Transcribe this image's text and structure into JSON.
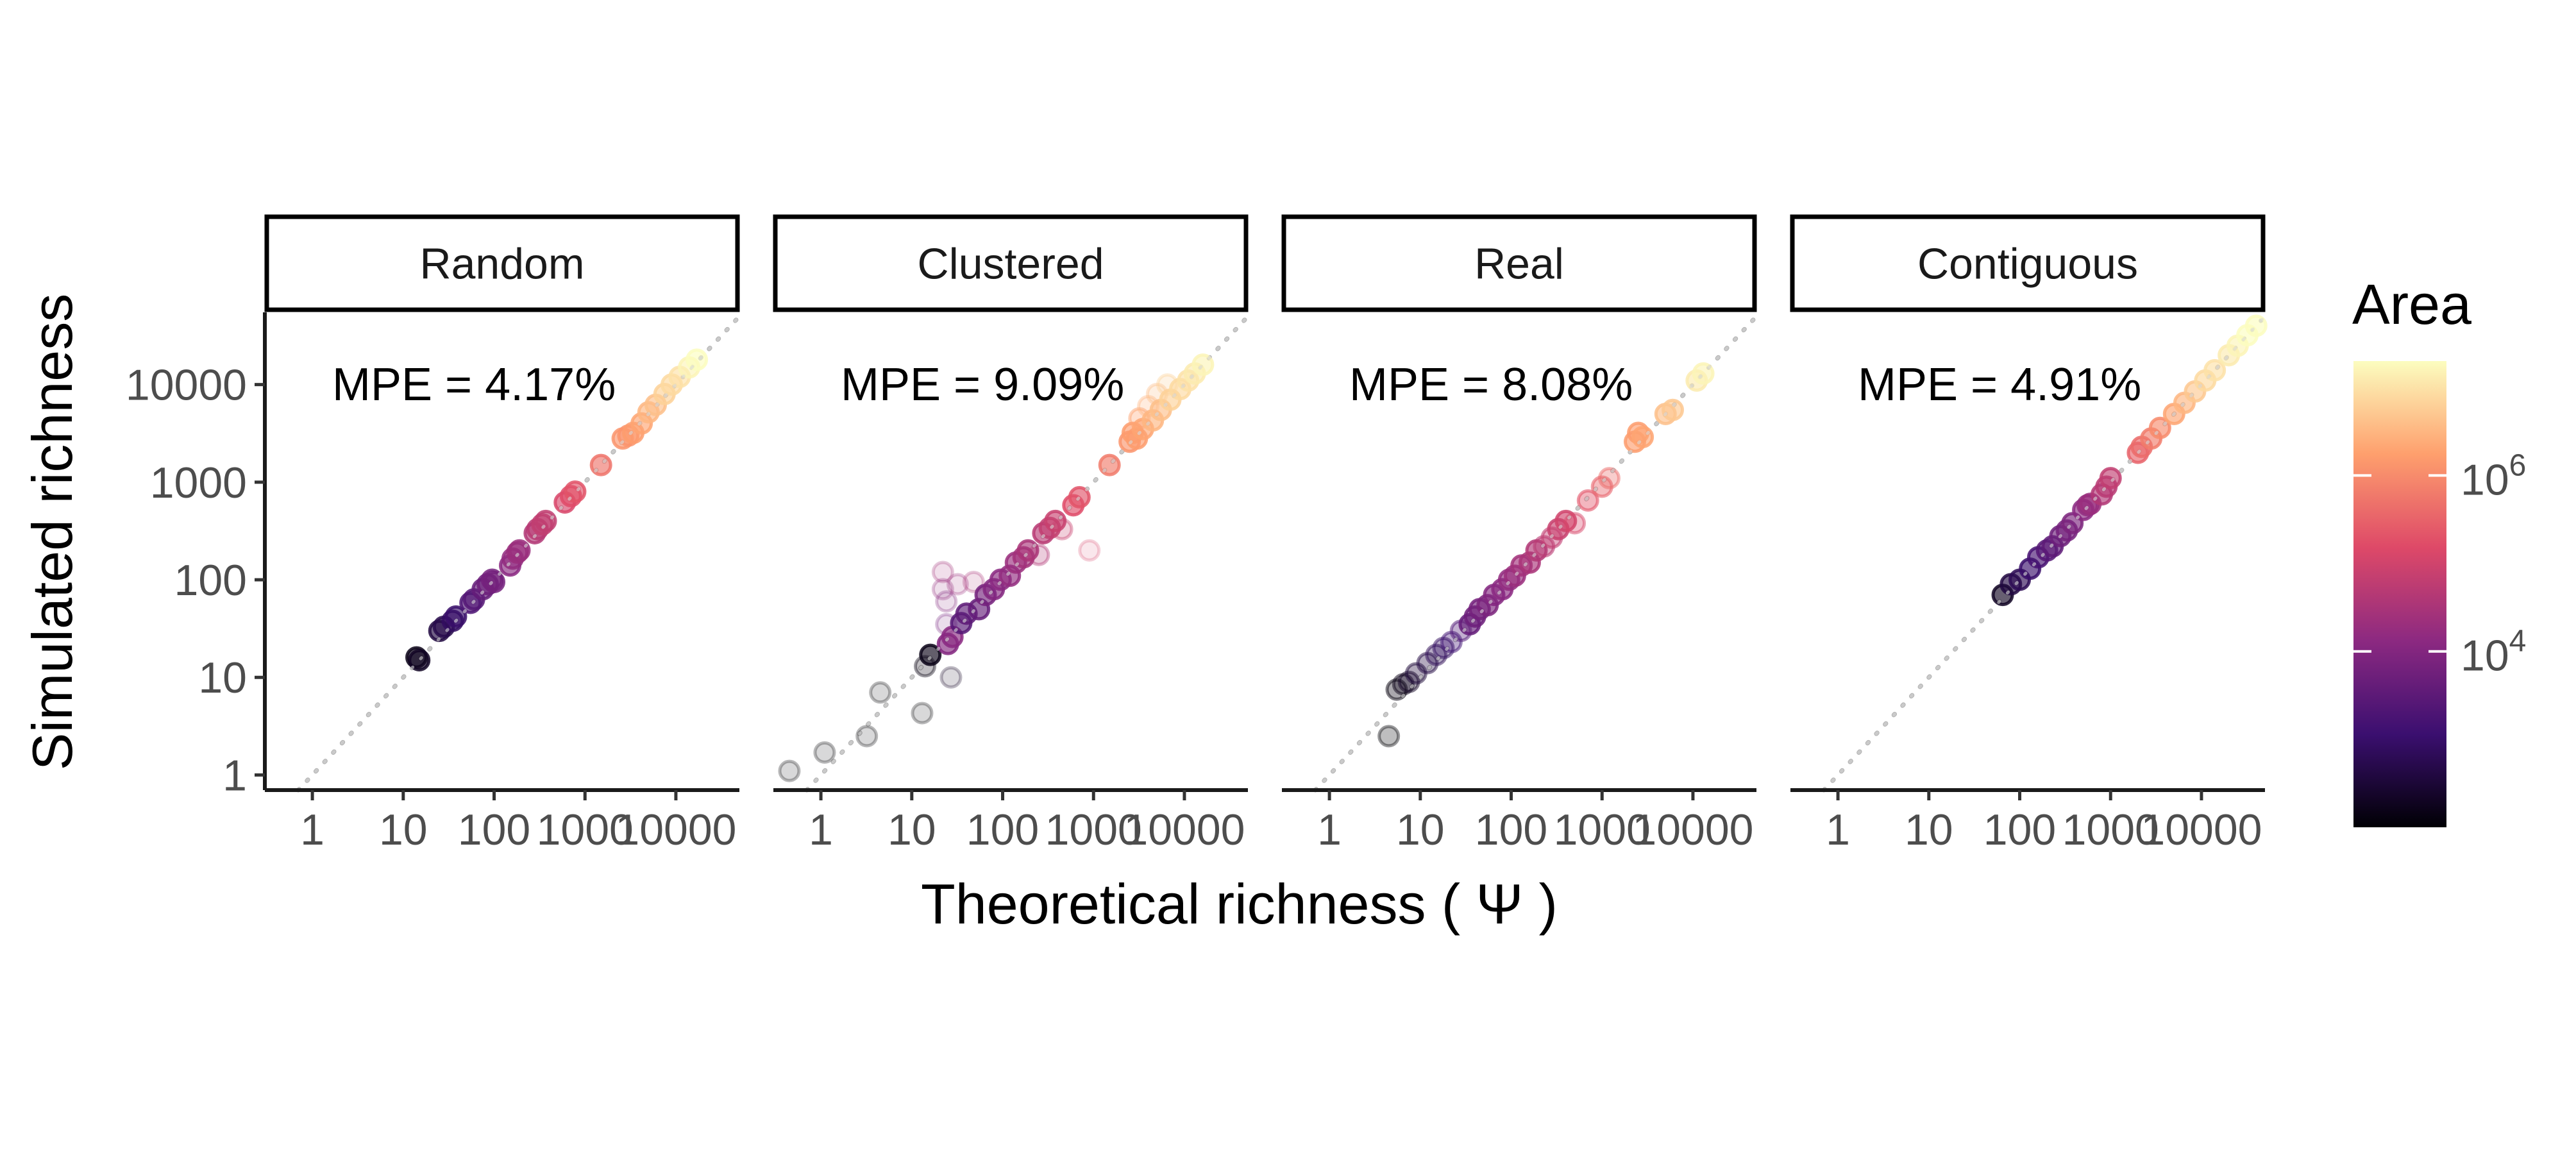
{
  "chart_data": {
    "type": "scatter",
    "xlabel": "Theoretical richness ( Ψ )",
    "ylabel": "Simulated richness",
    "x_scale": "log10",
    "y_scale": "log10",
    "x_ticks": [
      "1",
      "10",
      "100",
      "1000",
      "10000"
    ],
    "y_ticks": [
      "1",
      "10",
      "100",
      "1000",
      "10000"
    ],
    "xlim": [
      0.3,
      50000
    ],
    "ylim": [
      0.7,
      55000
    ],
    "reference_line": "y = x (dotted grey)",
    "grid": false,
    "legend": {
      "title": "Area",
      "type": "continuous color scale",
      "scale": "log10",
      "range": [
        100,
        20000000
      ],
      "ticks": [
        {
          "value": 1000000,
          "base": "10",
          "exp": "6"
        },
        {
          "value": 10000,
          "base": "10",
          "exp": "4"
        }
      ],
      "colormap": [
        "#000004",
        "#3b0f70",
        "#8c2981",
        "#de4968",
        "#fe9f6d",
        "#fcfdbf"
      ],
      "position": "right"
    },
    "panels": [
      {
        "label": "Random",
        "annotation": "MPE = 4.17%",
        "points": [
          {
            "x": 14,
            "y": 16,
            "a": 2.2,
            "o": 0.75
          },
          {
            "x": 15,
            "y": 15,
            "a": 2.3,
            "o": 0.75
          },
          {
            "x": 25,
            "y": 30,
            "a": 2.6,
            "o": 0.75
          },
          {
            "x": 28,
            "y": 33,
            "a": 2.7,
            "o": 0.75
          },
          {
            "x": 35,
            "y": 38,
            "a": 2.9,
            "o": 0.75
          },
          {
            "x": 38,
            "y": 42,
            "a": 3.0,
            "o": 0.75
          },
          {
            "x": 55,
            "y": 58,
            "a": 3.3,
            "o": 0.75
          },
          {
            "x": 60,
            "y": 63,
            "a": 3.4,
            "o": 0.75
          },
          {
            "x": 75,
            "y": 80,
            "a": 3.6,
            "o": 0.75
          },
          {
            "x": 85,
            "y": 90,
            "a": 3.7,
            "o": 0.75
          },
          {
            "x": 95,
            "y": 100,
            "a": 3.8,
            "o": 0.75
          },
          {
            "x": 100,
            "y": 95,
            "a": 3.8,
            "o": 0.75
          },
          {
            "x": 150,
            "y": 140,
            "a": 4.1,
            "o": 0.75
          },
          {
            "x": 160,
            "y": 165,
            "a": 4.2,
            "o": 0.75
          },
          {
            "x": 180,
            "y": 190,
            "a": 4.3,
            "o": 0.75
          },
          {
            "x": 190,
            "y": 200,
            "a": 4.3,
            "o": 0.75
          },
          {
            "x": 280,
            "y": 300,
            "a": 4.6,
            "o": 0.75
          },
          {
            "x": 300,
            "y": 330,
            "a": 4.7,
            "o": 0.75
          },
          {
            "x": 340,
            "y": 370,
            "a": 4.8,
            "o": 0.75
          },
          {
            "x": 370,
            "y": 400,
            "a": 4.8,
            "o": 0.75
          },
          {
            "x": 600,
            "y": 620,
            "a": 5.1,
            "o": 0.75
          },
          {
            "x": 700,
            "y": 720,
            "a": 5.2,
            "o": 0.75
          },
          {
            "x": 780,
            "y": 800,
            "a": 5.3,
            "o": 0.75
          },
          {
            "x": 1500,
            "y": 1500,
            "a": 5.7,
            "o": 0.75
          },
          {
            "x": 2600,
            "y": 2800,
            "a": 6.1,
            "o": 0.75
          },
          {
            "x": 3000,
            "y": 3000,
            "a": 6.1,
            "o": 0.75
          },
          {
            "x": 3400,
            "y": 3200,
            "a": 6.2,
            "o": 0.75
          },
          {
            "x": 4200,
            "y": 4000,
            "a": 6.3,
            "o": 0.75
          },
          {
            "x": 5000,
            "y": 5200,
            "a": 6.5,
            "o": 0.75
          },
          {
            "x": 6000,
            "y": 6200,
            "a": 6.6,
            "o": 0.75
          },
          {
            "x": 7500,
            "y": 8000,
            "a": 6.8,
            "o": 0.75
          },
          {
            "x": 9000,
            "y": 10000,
            "a": 6.9,
            "o": 0.75
          },
          {
            "x": 11000,
            "y": 12000,
            "a": 7.0,
            "o": 0.75
          },
          {
            "x": 14000,
            "y": 15000,
            "a": 7.2,
            "o": 0.75
          },
          {
            "x": 17000,
            "y": 18000,
            "a": 7.3,
            "o": 0.75
          }
        ]
      },
      {
        "label": "Clustered",
        "annotation": "MPE = 9.09%",
        "points": [
          {
            "x": 0.45,
            "y": 1.1,
            "a": 2.0,
            "o": 0.18
          },
          {
            "x": 1.1,
            "y": 1.7,
            "a": 2.0,
            "o": 0.18
          },
          {
            "x": 3.2,
            "y": 2.5,
            "a": 2.0,
            "o": 0.18
          },
          {
            "x": 4.5,
            "y": 7.0,
            "a": 2.0,
            "o": 0.18
          },
          {
            "x": 13,
            "y": 4.3,
            "a": 2.0,
            "o": 0.18
          },
          {
            "x": 14,
            "y": 13,
            "a": 2.1,
            "o": 0.3
          },
          {
            "x": 16,
            "y": 17,
            "a": 2.2,
            "o": 0.75
          },
          {
            "x": 27,
            "y": 10,
            "a": 2.3,
            "o": 0.18
          },
          {
            "x": 22,
            "y": 120,
            "a": 4.4,
            "o": 0.18
          },
          {
            "x": 22,
            "y": 80,
            "a": 4.2,
            "o": 0.18
          },
          {
            "x": 24,
            "y": 60,
            "a": 4.0,
            "o": 0.18
          },
          {
            "x": 24,
            "y": 35,
            "a": 3.8,
            "o": 0.18
          },
          {
            "x": 25,
            "y": 22,
            "a": 4.0,
            "o": 0.75
          },
          {
            "x": 28,
            "y": 26,
            "a": 4.1,
            "o": 0.75
          },
          {
            "x": 32,
            "y": 90,
            "a": 4.3,
            "o": 0.18
          },
          {
            "x": 35,
            "y": 36,
            "a": 3.4,
            "o": 0.75
          },
          {
            "x": 40,
            "y": 45,
            "a": 3.5,
            "o": 0.75
          },
          {
            "x": 48,
            "y": 95,
            "a": 4.5,
            "o": 0.18
          },
          {
            "x": 55,
            "y": 50,
            "a": 3.6,
            "o": 0.75
          },
          {
            "x": 65,
            "y": 70,
            "a": 3.8,
            "o": 0.75
          },
          {
            "x": 80,
            "y": 80,
            "a": 4.0,
            "o": 0.75
          },
          {
            "x": 95,
            "y": 100,
            "a": 4.1,
            "o": 0.75
          },
          {
            "x": 120,
            "y": 110,
            "a": 4.2,
            "o": 0.75
          },
          {
            "x": 140,
            "y": 150,
            "a": 4.3,
            "o": 0.75
          },
          {
            "x": 170,
            "y": 170,
            "a": 4.4,
            "o": 0.75
          },
          {
            "x": 190,
            "y": 200,
            "a": 4.5,
            "o": 0.75
          },
          {
            "x": 250,
            "y": 180,
            "a": 4.6,
            "o": 0.3
          },
          {
            "x": 280,
            "y": 300,
            "a": 4.7,
            "o": 0.75
          },
          {
            "x": 330,
            "y": 340,
            "a": 4.8,
            "o": 0.75
          },
          {
            "x": 380,
            "y": 400,
            "a": 4.9,
            "o": 0.75
          },
          {
            "x": 450,
            "y": 330,
            "a": 4.9,
            "o": 0.3
          },
          {
            "x": 600,
            "y": 580,
            "a": 5.2,
            "o": 0.75
          },
          {
            "x": 700,
            "y": 700,
            "a": 5.3,
            "o": 0.75
          },
          {
            "x": 900,
            "y": 200,
            "a": 5.1,
            "o": 0.15
          },
          {
            "x": 1500,
            "y": 1500,
            "a": 5.8,
            "o": 0.75
          },
          {
            "x": 2500,
            "y": 2600,
            "a": 6.1,
            "o": 0.75
          },
          {
            "x": 2700,
            "y": 3200,
            "a": 6.2,
            "o": 0.75
          },
          {
            "x": 3000,
            "y": 2800,
            "a": 6.2,
            "o": 0.75
          },
          {
            "x": 3200,
            "y": 4500,
            "a": 6.3,
            "o": 0.4
          },
          {
            "x": 3500,
            "y": 3500,
            "a": 6.3,
            "o": 0.75
          },
          {
            "x": 4000,
            "y": 6000,
            "a": 6.5,
            "o": 0.3
          },
          {
            "x": 4500,
            "y": 4300,
            "a": 6.5,
            "o": 0.75
          },
          {
            "x": 5000,
            "y": 8000,
            "a": 6.6,
            "o": 0.3
          },
          {
            "x": 5500,
            "y": 5500,
            "a": 6.6,
            "o": 0.75
          },
          {
            "x": 6500,
            "y": 10000,
            "a": 6.8,
            "o": 0.3
          },
          {
            "x": 7000,
            "y": 7000,
            "a": 6.8,
            "o": 0.75
          },
          {
            "x": 9000,
            "y": 9000,
            "a": 6.9,
            "o": 0.75
          },
          {
            "x": 11000,
            "y": 11000,
            "a": 7.0,
            "o": 0.75
          },
          {
            "x": 13000,
            "y": 13000,
            "a": 7.1,
            "o": 0.75
          },
          {
            "x": 16000,
            "y": 16000,
            "a": 7.2,
            "o": 0.75
          }
        ]
      },
      {
        "label": "Real",
        "annotation": "MPE = 8.08%",
        "points": [
          {
            "x": 4.5,
            "y": 2.5,
            "a": 2.0,
            "o": 0.3
          },
          {
            "x": 5.5,
            "y": 7.5,
            "a": 2.1,
            "o": 0.4
          },
          {
            "x": 6.5,
            "y": 8.5,
            "a": 2.2,
            "o": 0.4
          },
          {
            "x": 7.5,
            "y": 9.0,
            "a": 2.3,
            "o": 0.4
          },
          {
            "x": 9,
            "y": 11,
            "a": 2.5,
            "o": 0.4
          },
          {
            "x": 12,
            "y": 14,
            "a": 2.6,
            "o": 0.4
          },
          {
            "x": 15,
            "y": 17,
            "a": 2.8,
            "o": 0.4
          },
          {
            "x": 18,
            "y": 20,
            "a": 2.9,
            "o": 0.4
          },
          {
            "x": 22,
            "y": 23,
            "a": 3.1,
            "o": 0.4
          },
          {
            "x": 28,
            "y": 30,
            "a": 3.3,
            "o": 0.4
          },
          {
            "x": 35,
            "y": 35,
            "a": 3.6,
            "o": 0.75
          },
          {
            "x": 40,
            "y": 42,
            "a": 3.7,
            "o": 0.75
          },
          {
            "x": 45,
            "y": 50,
            "a": 3.8,
            "o": 0.75
          },
          {
            "x": 55,
            "y": 55,
            "a": 3.9,
            "o": 0.75
          },
          {
            "x": 65,
            "y": 70,
            "a": 4.0,
            "o": 0.75
          },
          {
            "x": 80,
            "y": 80,
            "a": 4.1,
            "o": 0.75
          },
          {
            "x": 95,
            "y": 100,
            "a": 4.2,
            "o": 0.75
          },
          {
            "x": 110,
            "y": 110,
            "a": 4.3,
            "o": 0.75
          },
          {
            "x": 130,
            "y": 140,
            "a": 4.4,
            "o": 0.75
          },
          {
            "x": 160,
            "y": 150,
            "a": 4.5,
            "o": 0.75
          },
          {
            "x": 190,
            "y": 200,
            "a": 4.6,
            "o": 0.75
          },
          {
            "x": 230,
            "y": 220,
            "a": 4.7,
            "o": 0.5
          },
          {
            "x": 280,
            "y": 270,
            "a": 4.8,
            "o": 0.5
          },
          {
            "x": 330,
            "y": 330,
            "a": 4.9,
            "o": 0.75
          },
          {
            "x": 400,
            "y": 400,
            "a": 5.0,
            "o": 0.75
          },
          {
            "x": 500,
            "y": 380,
            "a": 5.1,
            "o": 0.4
          },
          {
            "x": 700,
            "y": 650,
            "a": 5.3,
            "o": 0.5
          },
          {
            "x": 1000,
            "y": 900,
            "a": 5.5,
            "o": 0.5
          },
          {
            "x": 1200,
            "y": 1100,
            "a": 5.6,
            "o": 0.4
          },
          {
            "x": 2300,
            "y": 2600,
            "a": 6.2,
            "o": 0.75
          },
          {
            "x": 2500,
            "y": 3200,
            "a": 6.2,
            "o": 0.75
          },
          {
            "x": 2800,
            "y": 2900,
            "a": 6.3,
            "o": 0.75
          },
          {
            "x": 5000,
            "y": 5000,
            "a": 6.6,
            "o": 0.75
          },
          {
            "x": 6000,
            "y": 5500,
            "a": 6.7,
            "o": 0.75
          },
          {
            "x": 11000,
            "y": 11000,
            "a": 7.1,
            "o": 0.75
          },
          {
            "x": 13000,
            "y": 13000,
            "a": 7.2,
            "o": 0.75
          }
        ]
      },
      {
        "label": "Contiguous",
        "annotation": "MPE = 4.91%",
        "points": [
          {
            "x": 65,
            "y": 70,
            "a": 2.3,
            "o": 0.75
          },
          {
            "x": 80,
            "y": 90,
            "a": 2.6,
            "o": 0.75
          },
          {
            "x": 100,
            "y": 100,
            "a": 2.8,
            "o": 0.75
          },
          {
            "x": 130,
            "y": 130,
            "a": 3.0,
            "o": 0.75
          },
          {
            "x": 160,
            "y": 170,
            "a": 3.2,
            "o": 0.75
          },
          {
            "x": 200,
            "y": 200,
            "a": 3.4,
            "o": 0.75
          },
          {
            "x": 230,
            "y": 220,
            "a": 3.5,
            "o": 0.75
          },
          {
            "x": 280,
            "y": 280,
            "a": 3.7,
            "o": 0.75
          },
          {
            "x": 330,
            "y": 320,
            "a": 3.8,
            "o": 0.75
          },
          {
            "x": 380,
            "y": 380,
            "a": 3.9,
            "o": 0.75
          },
          {
            "x": 500,
            "y": 520,
            "a": 4.1,
            "o": 0.75
          },
          {
            "x": 560,
            "y": 580,
            "a": 4.2,
            "o": 0.75
          },
          {
            "x": 600,
            "y": 600,
            "a": 4.3,
            "o": 0.75
          },
          {
            "x": 800,
            "y": 750,
            "a": 4.6,
            "o": 0.75
          },
          {
            "x": 900,
            "y": 900,
            "a": 4.7,
            "o": 0.75
          },
          {
            "x": 1000,
            "y": 1100,
            "a": 4.8,
            "o": 0.75
          },
          {
            "x": 2000,
            "y": 2000,
            "a": 5.5,
            "o": 0.75
          },
          {
            "x": 2200,
            "y": 2300,
            "a": 5.6,
            "o": 0.75
          },
          {
            "x": 2800,
            "y": 2800,
            "a": 5.8,
            "o": 0.75
          },
          {
            "x": 3500,
            "y": 3600,
            "a": 6.0,
            "o": 0.75
          },
          {
            "x": 5000,
            "y": 5000,
            "a": 6.3,
            "o": 0.75
          },
          {
            "x": 6500,
            "y": 6500,
            "a": 6.5,
            "o": 0.75
          },
          {
            "x": 8500,
            "y": 8500,
            "a": 6.7,
            "o": 0.75
          },
          {
            "x": 11000,
            "y": 11000,
            "a": 6.9,
            "o": 0.75
          },
          {
            "x": 14000,
            "y": 14000,
            "a": 7.0,
            "o": 0.75
          },
          {
            "x": 20000,
            "y": 20000,
            "a": 7.1,
            "o": 0.75
          },
          {
            "x": 25000,
            "y": 25000,
            "a": 7.2,
            "o": 0.75
          },
          {
            "x": 32000,
            "y": 32000,
            "a": 7.3,
            "o": 0.75
          },
          {
            "x": 40000,
            "y": 40000,
            "a": 7.3,
            "o": 0.75
          }
        ]
      }
    ]
  }
}
